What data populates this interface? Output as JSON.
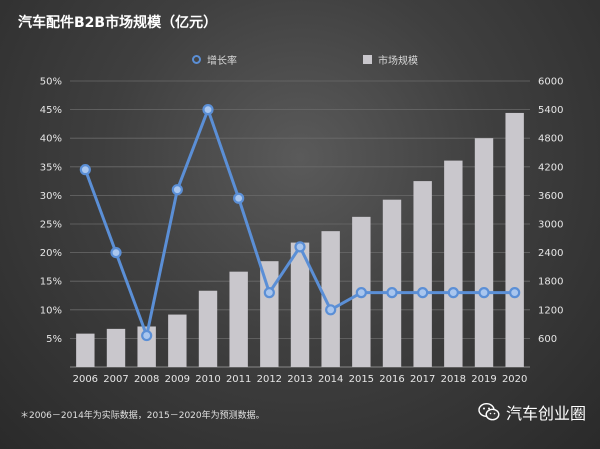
{
  "title": "汽车配件B2B市场规模（亿元）",
  "legend": {
    "line_label": "增长率",
    "bar_label": "市场规模"
  },
  "footnote": "＊2006－2014年为实际数据，2015－2020年为预测数据。",
  "watermark": "汽车创业圈",
  "colors": {
    "line": "#5b8fd6",
    "bar": "#c9c7cc",
    "grid": "#6a6a6a"
  },
  "chart_data": {
    "type": "bar",
    "categories": [
      "2006",
      "2007",
      "2008",
      "2009",
      "2010",
      "2011",
      "2012",
      "2013",
      "2014",
      "2015",
      "2016",
      "2017",
      "2018",
      "2019",
      "2020"
    ],
    "series": [
      {
        "name": "市场规模",
        "type": "bar",
        "axis": "right",
        "values": [
          700,
          800,
          850,
          1100,
          1600,
          2000,
          2220,
          2610,
          2850,
          3150,
          3510,
          3900,
          4330,
          4800,
          5330
        ]
      },
      {
        "name": "增长率",
        "type": "line",
        "axis": "left",
        "values": [
          34.5,
          20,
          5.5,
          31,
          45,
          29.5,
          13,
          21,
          10,
          13,
          13,
          13,
          13,
          13,
          13
        ]
      }
    ],
    "y_left": {
      "ylim": [
        0,
        50
      ],
      "ticks": [
        "5%",
        "10%",
        "15%",
        "20%",
        "25%",
        "30%",
        "35%",
        "40%",
        "45%",
        "50%"
      ],
      "tick_values": [
        5,
        10,
        15,
        20,
        25,
        30,
        35,
        40,
        45,
        50
      ]
    },
    "y_right": {
      "ylim": [
        0,
        6000
      ],
      "ticks": [
        "600",
        "1200",
        "1800",
        "2400",
        "3000",
        "3600",
        "4200",
        "4800",
        "5400",
        "6000"
      ],
      "tick_values": [
        600,
        1200,
        1800,
        2400,
        3000,
        3600,
        4200,
        4800,
        5400,
        6000
      ]
    },
    "grid": true,
    "legend_position": "top"
  }
}
